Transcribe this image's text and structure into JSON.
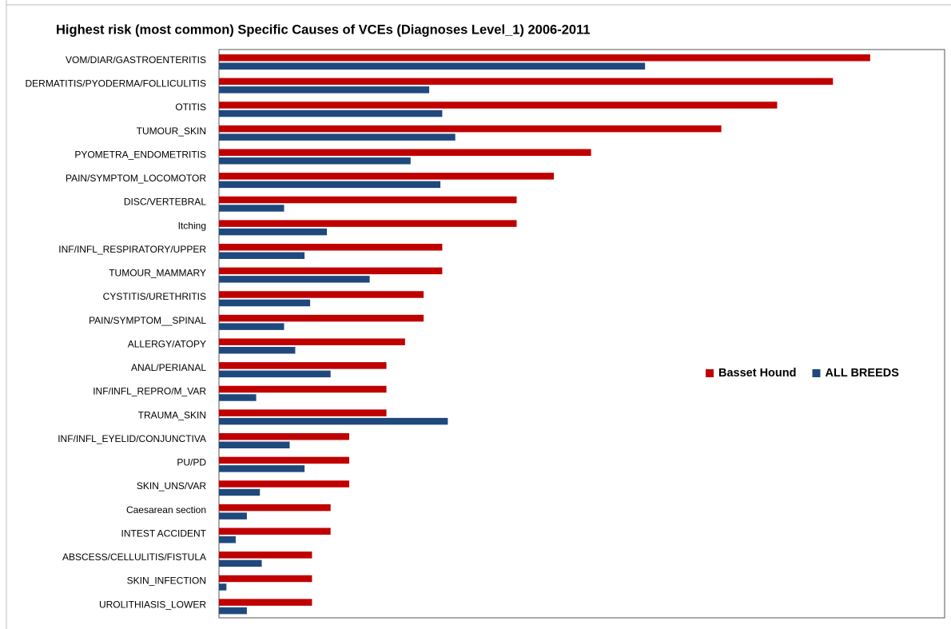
{
  "chart_data": {
    "type": "barh",
    "title": "Highest risk (most common) Specific Causes of VCEs (Diagnoses Level_1) 2006-2011",
    "categories": [
      "VOM/DIAR/GASTROENTERITIS",
      "DERMATITIS/PYODERMA/FOLLICULITIS",
      "OTITIS",
      "TUMOUR_SKIN",
      "PYOMETRA_ENDOMETRITIS",
      "PAIN/SYMPTOM_LOCOMOTOR",
      "DISC/VERTEBRAL",
      "Itching",
      "INF/INFL_RESPIRATORY/UPPER",
      "TUMOUR_MAMMARY",
      "CYSTITIS/URETHRITIS",
      "PAIN/SYMPTOM__SPINAL",
      "ALLERGY/ATOPY",
      "ANAL/PERIANAL",
      "INF/INFL_REPRO/M_VAR",
      "TRAUMA_SKIN",
      "INF/INFL_EYELID/CONJUNCTIVA",
      "PU/PD",
      "SKIN_UNS/VAR",
      "Caesarean section",
      "INTEST ACCIDENT",
      "ABSCESS/CELLULITIS/FISTULA",
      "SKIN_INFECTION",
      "UROLITHIASIS_LOWER"
    ],
    "series": [
      {
        "name": "Basset Hound",
        "color": "#c00000",
        "values": [
          35,
          33,
          30,
          27,
          20,
          18,
          16,
          16,
          12,
          12,
          11,
          11,
          10,
          9,
          9,
          9,
          7,
          7,
          7,
          6,
          6,
          5,
          5,
          5
        ]
      },
      {
        "name": "ALL BREEDS",
        "color": "#1f497d",
        "values": [
          22.9,
          11.3,
          12,
          12.7,
          10.3,
          11.9,
          3.5,
          5.8,
          4.6,
          8.1,
          4.9,
          3.5,
          4.1,
          6,
          2,
          12.3,
          3.8,
          4.6,
          2.2,
          1.5,
          0.9,
          2.3,
          0.4,
          1.5
        ]
      }
    ],
    "xlim": [
      0,
      39
    ],
    "legend": "right"
  }
}
